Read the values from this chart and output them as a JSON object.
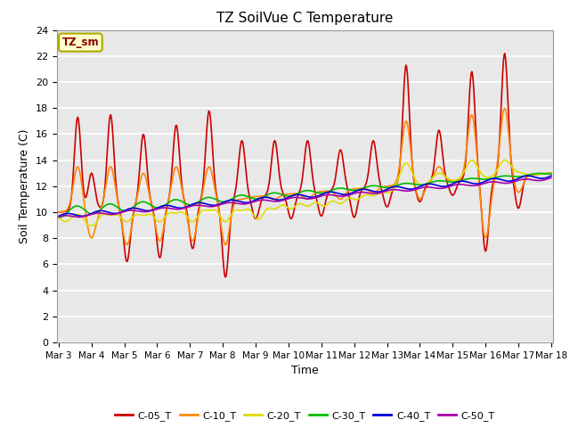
{
  "title": "TZ SoilVue C Temperature",
  "xlabel": "Time",
  "ylabel": "Soil Temperature (C)",
  "ylim": [
    0,
    24
  ],
  "yticks": [
    0,
    2,
    4,
    6,
    8,
    10,
    12,
    14,
    16,
    18,
    20,
    22,
    24
  ],
  "xtick_labels": [
    "Mar 3",
    "Mar 4",
    "Mar 5",
    "Mar 6",
    "Mar 7",
    "Mar 8",
    "Mar 9",
    "Mar 10",
    "Mar 11",
    "Mar 12",
    "Mar 13",
    "Mar 14",
    "Mar 15",
    "Mar 16",
    "Mar 17",
    "Mar 18"
  ],
  "annotation_text": "TZ_sm",
  "annotation_color": "#880000",
  "annotation_bg": "#ffffcc",
  "annotation_border": "#aaaa00",
  "plot_bg": "#e8e8e8",
  "fig_bg": "#ffffff",
  "series": {
    "C-05_T": {
      "color": "#cc0000",
      "linewidth": 1.2
    },
    "C-10_T": {
      "color": "#ff8800",
      "linewidth": 1.2
    },
    "C-20_T": {
      "color": "#dddd00",
      "linewidth": 1.2
    },
    "C-30_T": {
      "color": "#00bb00",
      "linewidth": 1.2
    },
    "C-40_T": {
      "color": "#0000dd",
      "linewidth": 1.2
    },
    "C-50_T": {
      "color": "#aa00aa",
      "linewidth": 1.2
    }
  },
  "start_day": 3,
  "end_day": 18,
  "n_points": 720
}
